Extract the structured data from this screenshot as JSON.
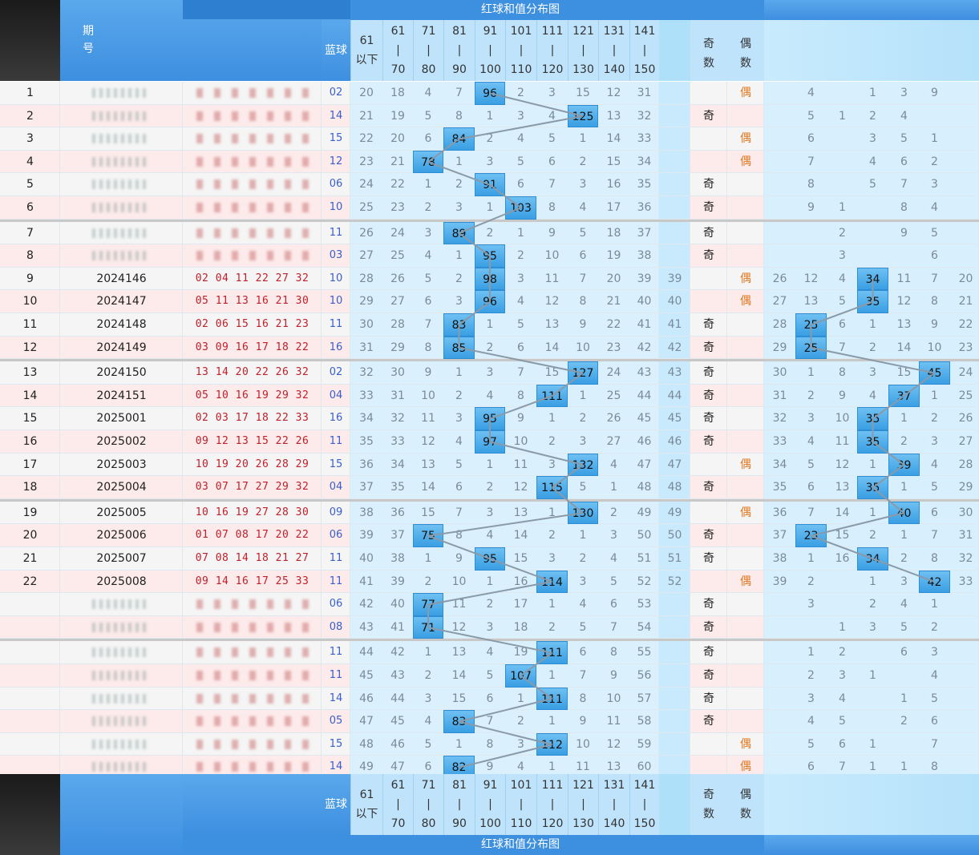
{
  "header": {
    "top_title": "红球和值分布图",
    "col_period": "期\n号",
    "col_blue": "蓝球",
    "ranges": [
      {
        "top": "61",
        "mid": "以下",
        "bot": ""
      },
      {
        "top": "61",
        "mid": "|",
        "bot": "70"
      },
      {
        "top": "71",
        "mid": "|",
        "bot": "80"
      },
      {
        "top": "81",
        "mid": "|",
        "bot": "90"
      },
      {
        "top": "91",
        "mid": "|",
        "bot": "100"
      },
      {
        "top": "101",
        "mid": "|",
        "bot": "110"
      },
      {
        "top": "111",
        "mid": "|",
        "bot": "120"
      },
      {
        "top": "121",
        "mid": "|",
        "bot": "130"
      },
      {
        "top": "131",
        "mid": "|",
        "bot": "140"
      },
      {
        "top": "141",
        "mid": "|",
        "bot": "150"
      }
    ],
    "col_odd": "奇\n数",
    "col_even": "偶\n数"
  },
  "footer": {
    "bottom_title": "红球和值分布图",
    "col_blue": "蓝球"
  },
  "colors": {
    "highlight": "#4aaaea",
    "even_text": "#e07820",
    "red_balls": "#c0202a",
    "blue_ball": "#3a5fc8"
  },
  "chart_data": {
    "type": "table",
    "title": "红球和值分布图",
    "rows": [
      {
        "n": "1",
        "issue": "",
        "reds": "",
        "blue": "02",
        "cells": [
          "20",
          "18",
          "4",
          "7",
          "96",
          "2",
          "3",
          "15",
          "12",
          "31"
        ],
        "hi": 4,
        "oe": "偶",
        "right": [
          "",
          "4",
          "",
          "1",
          "3",
          "9",
          ""
        ],
        "rhi": -1
      },
      {
        "n": "2",
        "issue": "",
        "reds": "",
        "blue": "14",
        "cells": [
          "21",
          "19",
          "5",
          "8",
          "1",
          "3",
          "4",
          "125",
          "13",
          "32"
        ],
        "hi": 7,
        "oe": "奇",
        "right": [
          "",
          "5",
          "1",
          "2",
          "4",
          "",
          ""
        ],
        "rhi": -1
      },
      {
        "n": "3",
        "issue": "",
        "reds": "",
        "blue": "15",
        "cells": [
          "22",
          "20",
          "6",
          "84",
          "2",
          "4",
          "5",
          "1",
          "14",
          "33"
        ],
        "hi": 3,
        "oe": "偶",
        "right": [
          "",
          "6",
          "",
          "3",
          "5",
          "1",
          ""
        ],
        "rhi": -1
      },
      {
        "n": "4",
        "issue": "",
        "reds": "",
        "blue": "12",
        "cells": [
          "23",
          "21",
          "78",
          "1",
          "3",
          "5",
          "6",
          "2",
          "15",
          "34"
        ],
        "hi": 2,
        "oe": "偶",
        "right": [
          "",
          "7",
          "",
          "4",
          "6",
          "2",
          ""
        ],
        "rhi": -1
      },
      {
        "n": "5",
        "issue": "",
        "reds": "",
        "blue": "06",
        "cells": [
          "24",
          "22",
          "1",
          "2",
          "91",
          "6",
          "7",
          "3",
          "16",
          "35"
        ],
        "hi": 4,
        "oe": "奇",
        "right": [
          "",
          "8",
          "",
          "5",
          "7",
          "3",
          ""
        ],
        "rhi": -1
      },
      {
        "n": "6",
        "issue": "",
        "reds": "",
        "blue": "10",
        "cells": [
          "25",
          "23",
          "2",
          "3",
          "1",
          "103",
          "8",
          "4",
          "17",
          "36"
        ],
        "hi": 5,
        "oe": "奇",
        "right": [
          "",
          "9",
          "1",
          "",
          "8",
          "4",
          ""
        ],
        "rhi": -1
      },
      {
        "n": "7",
        "issue": "",
        "reds": "",
        "blue": "11",
        "cells": [
          "26",
          "24",
          "3",
          "89",
          "2",
          "1",
          "9",
          "5",
          "18",
          "37"
        ],
        "hi": 3,
        "oe": "奇",
        "right": [
          "",
          "",
          "2",
          "",
          "9",
          "5",
          ""
        ],
        "rhi": -1
      },
      {
        "n": "8",
        "issue": "",
        "reds": "",
        "blue": "03",
        "cells": [
          "27",
          "25",
          "4",
          "1",
          "95",
          "2",
          "10",
          "6",
          "19",
          "38"
        ],
        "hi": 4,
        "oe": "奇",
        "right": [
          "",
          "",
          "3",
          "",
          "",
          "6",
          ""
        ],
        "rhi": -1
      },
      {
        "n": "9",
        "issue": "2024146",
        "reds": "02 04 11 22 27 32",
        "blue": "10",
        "cells": [
          "28",
          "26",
          "5",
          "2",
          "98",
          "3",
          "11",
          "7",
          "20",
          "39"
        ],
        "c11": "39",
        "hi": 4,
        "oe": "偶",
        "right": [
          "26",
          "12",
          "4",
          "34",
          "11",
          "7",
          "20"
        ],
        "rhi": 3
      },
      {
        "n": "10",
        "issue": "2024147",
        "reds": "05 11 13 16 21 30",
        "blue": "10",
        "cells": [
          "29",
          "27",
          "6",
          "3",
          "96",
          "4",
          "12",
          "8",
          "21",
          "40"
        ],
        "c11": "40",
        "hi": 4,
        "oe": "偶",
        "right": [
          "27",
          "13",
          "5",
          "35",
          "12",
          "8",
          "21"
        ],
        "rhi": 3
      },
      {
        "n": "11",
        "issue": "2024148",
        "reds": "02 06 15 16 21 23",
        "blue": "11",
        "cells": [
          "30",
          "28",
          "7",
          "83",
          "1",
          "5",
          "13",
          "9",
          "22",
          "41"
        ],
        "c11": "41",
        "hi": 3,
        "oe": "奇",
        "right": [
          "28",
          "25",
          "6",
          "1",
          "13",
          "9",
          "22"
        ],
        "rhi": 1
      },
      {
        "n": "12",
        "issue": "2024149",
        "reds": "03 09 16 17 18 22",
        "blue": "16",
        "cells": [
          "31",
          "29",
          "8",
          "85",
          "2",
          "6",
          "14",
          "10",
          "23",
          "42"
        ],
        "c11": "42",
        "hi": 3,
        "oe": "奇",
        "right": [
          "29",
          "25",
          "7",
          "2",
          "14",
          "10",
          "23"
        ],
        "rhi": 1
      },
      {
        "n": "13",
        "issue": "2024150",
        "reds": "13 14 20 22 26 32",
        "blue": "02",
        "cells": [
          "32",
          "30",
          "9",
          "1",
          "3",
          "7",
          "15",
          "127",
          "24",
          "43"
        ],
        "c11": "43",
        "hi": 7,
        "oe": "奇",
        "right": [
          "30",
          "1",
          "8",
          "3",
          "15",
          "45",
          "24"
        ],
        "rhi": 5
      },
      {
        "n": "14",
        "issue": "2024151",
        "reds": "05 10 16 19 29 32",
        "blue": "04",
        "cells": [
          "33",
          "31",
          "10",
          "2",
          "4",
          "8",
          "111",
          "1",
          "25",
          "44"
        ],
        "c11": "44",
        "hi": 6,
        "oe": "奇",
        "right": [
          "31",
          "2",
          "9",
          "4",
          "37",
          "1",
          "25"
        ],
        "rhi": 4
      },
      {
        "n": "15",
        "issue": "2025001",
        "reds": "02 03 17 18 22 33",
        "blue": "16",
        "cells": [
          "34",
          "32",
          "11",
          "3",
          "95",
          "9",
          "1",
          "2",
          "26",
          "45"
        ],
        "c11": "45",
        "hi": 4,
        "oe": "奇",
        "right": [
          "32",
          "3",
          "10",
          "35",
          "1",
          "2",
          "26"
        ],
        "rhi": 3
      },
      {
        "n": "16",
        "issue": "2025002",
        "reds": "09 12 13 15 22 26",
        "blue": "11",
        "cells": [
          "35",
          "33",
          "12",
          "4",
          "97",
          "10",
          "2",
          "3",
          "27",
          "46"
        ],
        "c11": "46",
        "hi": 4,
        "oe": "奇",
        "right": [
          "33",
          "4",
          "11",
          "35",
          "2",
          "3",
          "27"
        ],
        "rhi": 3
      },
      {
        "n": "17",
        "issue": "2025003",
        "reds": "10 19 20 26 28 29",
        "blue": "15",
        "cells": [
          "36",
          "34",
          "13",
          "5",
          "1",
          "11",
          "3",
          "132",
          "4",
          "47"
        ],
        "c11": "47",
        "hi": 7,
        "oe": "偶",
        "right": [
          "34",
          "5",
          "12",
          "1",
          "39",
          "4",
          "28"
        ],
        "rhi": 4
      },
      {
        "n": "18",
        "issue": "2025004",
        "reds": "03 07 17 27 29 32",
        "blue": "04",
        "cells": [
          "37",
          "35",
          "14",
          "6",
          "2",
          "12",
          "115",
          "5",
          "1",
          "48"
        ],
        "c11": "48",
        "hi": 6,
        "oe": "奇",
        "right": [
          "35",
          "6",
          "13",
          "35",
          "1",
          "5",
          "29"
        ],
        "rhi": 3
      },
      {
        "n": "19",
        "issue": "2025005",
        "reds": "10 16 19 27 28 30",
        "blue": "09",
        "cells": [
          "38",
          "36",
          "15",
          "7",
          "3",
          "13",
          "1",
          "130",
          "2",
          "49"
        ],
        "c11": "49",
        "hi": 7,
        "oe": "偶",
        "right": [
          "36",
          "7",
          "14",
          "1",
          "40",
          "6",
          "30"
        ],
        "rhi": 4
      },
      {
        "n": "20",
        "issue": "2025006",
        "reds": "01 07 08 17 20 22",
        "blue": "06",
        "cells": [
          "39",
          "37",
          "75",
          "8",
          "4",
          "14",
          "2",
          "1",
          "3",
          "50"
        ],
        "c11": "50",
        "hi": 2,
        "oe": "奇",
        "right": [
          "37",
          "23",
          "15",
          "2",
          "1",
          "7",
          "31"
        ],
        "rhi": 1
      },
      {
        "n": "21",
        "issue": "2025007",
        "reds": "07 08 14 18 21 27",
        "blue": "11",
        "cells": [
          "40",
          "38",
          "1",
          "9",
          "95",
          "15",
          "3",
          "2",
          "4",
          "51"
        ],
        "c11": "51",
        "hi": 4,
        "oe": "奇",
        "right": [
          "38",
          "1",
          "16",
          "34",
          "2",
          "8",
          "32"
        ],
        "rhi": 3
      },
      {
        "n": "22",
        "issue": "2025008",
        "reds": "09 14 16 17 25 33",
        "blue": "11",
        "cells": [
          "41",
          "39",
          "2",
          "10",
          "1",
          "16",
          "114",
          "3",
          "5",
          "52"
        ],
        "c11": "52",
        "hi": 6,
        "oe": "偶",
        "right": [
          "39",
          "2",
          "",
          "1",
          "3",
          "42",
          "33"
        ],
        "rhi": 5
      },
      {
        "n": "",
        "issue": "",
        "reds": "",
        "blue": "06",
        "cells": [
          "42",
          "40",
          "77",
          "11",
          "2",
          "17",
          "1",
          "4",
          "6",
          "53"
        ],
        "hi": 2,
        "oe": "奇",
        "right": [
          "",
          "3",
          "",
          "2",
          "4",
          "1",
          ""
        ],
        "rhi": -1
      },
      {
        "n": "",
        "issue": "",
        "reds": "",
        "blue": "08",
        "cells": [
          "43",
          "41",
          "71",
          "12",
          "3",
          "18",
          "2",
          "5",
          "7",
          "54"
        ],
        "hi": 2,
        "oe": "奇",
        "right": [
          "",
          "",
          "1",
          "3",
          "5",
          "2",
          ""
        ],
        "rhi": -1
      },
      {
        "n": "",
        "issue": "",
        "reds": "",
        "blue": "11",
        "cells": [
          "44",
          "42",
          "1",
          "13",
          "4",
          "19",
          "111",
          "6",
          "8",
          "55"
        ],
        "hi": 6,
        "oe": "奇",
        "right": [
          "",
          "1",
          "2",
          "",
          "6",
          "3",
          ""
        ],
        "rhi": -1
      },
      {
        "n": "",
        "issue": "",
        "reds": "",
        "blue": "11",
        "cells": [
          "45",
          "43",
          "2",
          "14",
          "5",
          "107",
          "1",
          "7",
          "9",
          "56"
        ],
        "hi": 5,
        "oe": "奇",
        "right": [
          "",
          "2",
          "3",
          "1",
          "",
          "4",
          ""
        ],
        "rhi": -1
      },
      {
        "n": "",
        "issue": "",
        "reds": "",
        "blue": "14",
        "cells": [
          "46",
          "44",
          "3",
          "15",
          "6",
          "1",
          "111",
          "8",
          "10",
          "57"
        ],
        "hi": 6,
        "oe": "奇",
        "right": [
          "",
          "3",
          "4",
          "",
          "1",
          "5",
          ""
        ],
        "rhi": -1
      },
      {
        "n": "",
        "issue": "",
        "reds": "",
        "blue": "05",
        "cells": [
          "47",
          "45",
          "4",
          "83",
          "7",
          "2",
          "1",
          "9",
          "11",
          "58"
        ],
        "hi": 3,
        "oe": "奇",
        "right": [
          "",
          "4",
          "5",
          "",
          "2",
          "6",
          ""
        ],
        "rhi": -1
      },
      {
        "n": "",
        "issue": "",
        "reds": "",
        "blue": "15",
        "cells": [
          "48",
          "46",
          "5",
          "1",
          "8",
          "3",
          "112",
          "10",
          "12",
          "59"
        ],
        "hi": 6,
        "oe": "偶",
        "right": [
          "",
          "5",
          "6",
          "1",
          "",
          "7",
          ""
        ],
        "rhi": -1
      },
      {
        "n": "",
        "issue": "",
        "reds": "",
        "blue": "14",
        "cells": [
          "49",
          "47",
          "6",
          "82",
          "9",
          "4",
          "1",
          "11",
          "13",
          "60"
        ],
        "hi": 3,
        "oe": "偶",
        "right": [
          "",
          "6",
          "7",
          "1",
          "1",
          "8",
          ""
        ],
        "rhi": -1
      }
    ]
  }
}
